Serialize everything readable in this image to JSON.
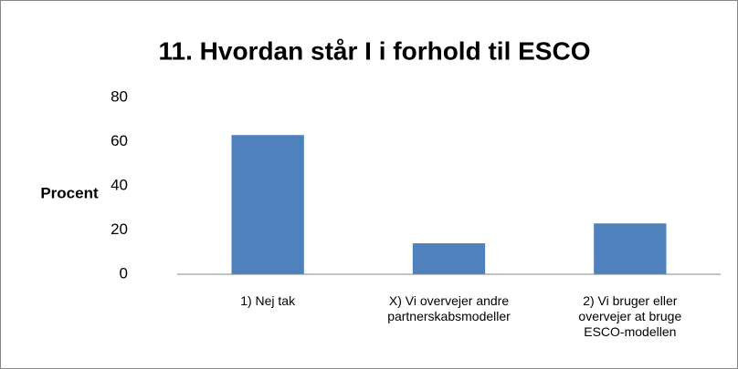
{
  "chart_data": {
    "type": "bar",
    "title": "11. Hvordan står I i forhold til ESCO",
    "y_label": "Procent",
    "categories": [
      "1) Nej tak",
      "X) Vi overvejer andre partnerskabsmodeller",
      "2) Vi bruger eller overvejer at bruge ESCO-modellen"
    ],
    "values": [
      63,
      14,
      23
    ],
    "color": "#4f81bd",
    "ylim": [
      0,
      80
    ],
    "yticks": [
      0,
      20,
      40,
      60,
      80
    ],
    "grid": false
  }
}
